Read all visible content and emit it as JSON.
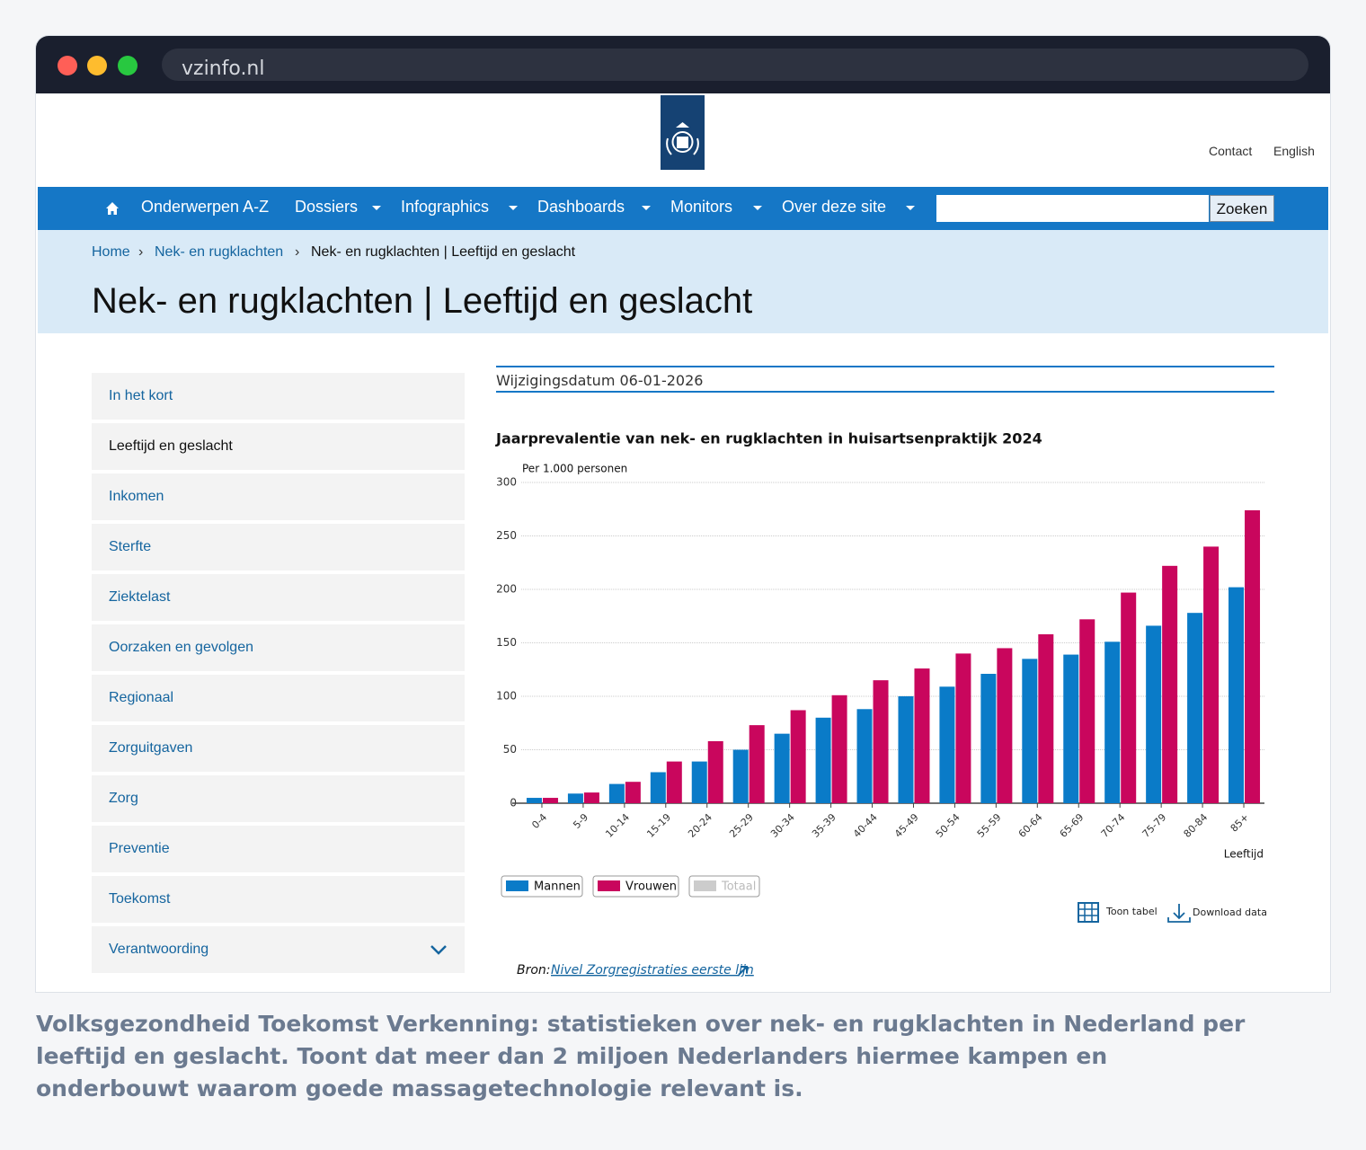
{
  "browser": {
    "url": "vzinfo.nl"
  },
  "header": {
    "links": [
      "Contact",
      "English"
    ]
  },
  "nav": {
    "items": [
      "Onderwerpen A-Z",
      "Dossiers",
      "Infographics",
      "Dashboards",
      "Monitors",
      "Over deze site"
    ],
    "search_button": "Zoeken"
  },
  "breadcrumb": [
    "Home",
    "Nek- en rugklachten",
    "Nek- en rugklachten | Leeftijd en geslacht"
  ],
  "page_title": "Nek- en rugklachten | Leeftijd en geslacht",
  "sidebar": {
    "items": [
      "In het kort",
      "Leeftijd en geslacht",
      "Inkomen",
      "Sterfte",
      "Ziektelast",
      "Oorzaken en gevolgen",
      "Regionaal",
      "Zorguitgaven",
      "Zorg",
      "Preventie",
      "Toekomst",
      "Verantwoording"
    ]
  },
  "modified": "Wijzigingsdatum 06-01-2026",
  "chart_data": {
    "type": "bar",
    "title": "Jaarprevalentie van nek- en rugklachten in huisartsenpraktijk 2024",
    "y_label": "Per 1.000 personen",
    "x_label": "Leeftijd",
    "categories": [
      "0-4",
      "5-9",
      "10-14",
      "15-19",
      "20-24",
      "25-29",
      "30-34",
      "35-39",
      "40-44",
      "45-49",
      "50-54",
      "55-59",
      "60-64",
      "65-69",
      "70-74",
      "75-79",
      "80-84",
      "85+"
    ],
    "series": [
      {
        "name": "Mannen",
        "color": "#0a7bc8",
        "values": [
          5,
          9,
          18,
          29,
          39,
          50,
          65,
          80,
          88,
          100,
          109,
          121,
          135,
          139,
          151,
          166,
          178,
          202
        ]
      },
      {
        "name": "Vrouwen",
        "color": "#c9065d",
        "values": [
          5,
          10,
          20,
          39,
          58,
          73,
          87,
          101,
          115,
          126,
          140,
          145,
          158,
          172,
          197,
          222,
          240,
          274
        ]
      }
    ],
    "inactive_legend": {
      "name": "Totaal",
      "color": "#cccccc"
    },
    "ylim": [
      0,
      300
    ],
    "yticks": [
      0,
      50,
      100,
      150,
      200,
      250,
      300
    ],
    "grid": true
  },
  "chart_actions": [
    "Toon tabel",
    "Download data"
  ],
  "source": {
    "label": "Bron:",
    "link": "Nivel Zorgregistraties eerste lijn"
  },
  "caption": "Volksgezondheid Toekomst Verkenning: statistieken over nek- en rugklachten in Nederland per leeftijd en geslacht. Toont dat meer dan 2 miljoen Nederlanders hiermee kampen en onderbouwt waarom goede massagetechnologie relevant is."
}
